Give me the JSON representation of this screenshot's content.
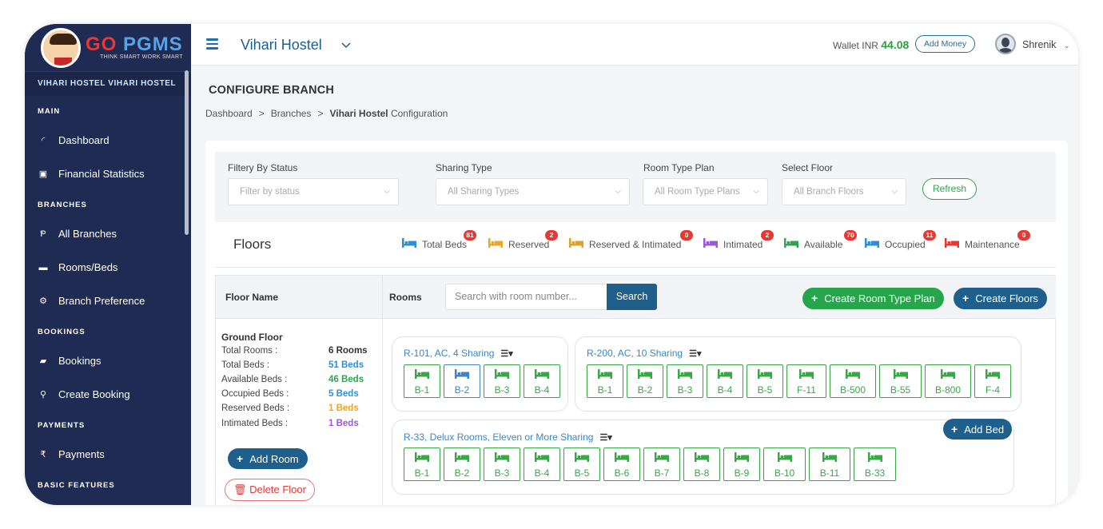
{
  "brand": {
    "logo_text_left": "GO",
    "logo_text_right": "PGMS",
    "tagline": "THINK SMART WORK SMART"
  },
  "sidebar": {
    "branch_name": "VIHARI HOSTEL VIHARI HOSTEL",
    "sections": {
      "main": "MAIN",
      "branches": "BRANCHES",
      "bookings": "BOOKINGS",
      "payments": "PAYMENTS",
      "basic": "BASIC FEATURES"
    },
    "items": {
      "dashboard": "Dashboard",
      "financial": "Financial Statistics",
      "all_branches": "All Branches",
      "rooms_beds": "Rooms/Beds",
      "branch_pref": "Branch Preference",
      "bookings": "Bookings",
      "create_booking": "Create Booking",
      "payments": "Payments"
    }
  },
  "topbar": {
    "hostel": "Vihari Hostel",
    "wallet_label": "Wallet INR",
    "wallet_amount": "44.08",
    "add_money": "Add Money",
    "user": "Shrenik"
  },
  "page": {
    "title": "CONFIGURE BRANCH",
    "crumb": {
      "c1": "Dashboard",
      "c2": "Branches",
      "c3_bold": "Vihari Hostel",
      "c3_rest": "Configuration",
      "sep": ">"
    }
  },
  "filters": {
    "status_label": "Filtery By Status",
    "status_ph": "Filter by status",
    "sharing_label": "Sharing Type",
    "sharing_ph": "All Sharing Types",
    "plan_label": "Room Type Plan",
    "plan_ph": "All Room Type Plans",
    "floor_label": "Select Floor",
    "floor_ph": "All Branch Floors",
    "refresh": "Refresh"
  },
  "legend": {
    "floors": "Floors",
    "total": {
      "label": "Total Beds",
      "count": "81",
      "color": "#2f8fd6"
    },
    "reserved": {
      "label": "Reserved",
      "count": "2",
      "color": "#f0a422"
    },
    "res_int": {
      "label": "Reserved & Intimated",
      "count": "0",
      "color": "#e0a030"
    },
    "intimated": {
      "label": "Intimated",
      "count": "2",
      "color": "#9b59d6"
    },
    "available": {
      "label": "Available",
      "count": "70",
      "color": "#2ea44f"
    },
    "occupied": {
      "label": "Occupied",
      "count": "11",
      "color": "#2f8fd6"
    },
    "maintenance": {
      "label": "Maintenance",
      "count": "0",
      "color": "#e53935"
    }
  },
  "floor_panel": {
    "header": "Floor Name",
    "name": "Ground Floor",
    "stats": {
      "total_rooms_l": "Total Rooms :",
      "total_rooms_v": "6 Rooms",
      "total_beds_l": "Total Beds :",
      "total_beds_v": "51 Beds",
      "avail_l": "Available Beds :",
      "avail_v": "46 Beds",
      "occ_l": "Occupied Beds :",
      "occ_v": "5 Beds",
      "res_l": "Reserved Beds :",
      "res_v": "1 Beds",
      "int_l": "Intimated Beds :",
      "int_v": "1 Beds"
    },
    "add_room": "Add Room",
    "delete_floor": "Delete Floor"
  },
  "rooms_panel": {
    "label": "Rooms",
    "search_ph": "Search with room number...",
    "search_btn": "Search",
    "create_plan": "Create Room Type Plan",
    "create_floors": "Create Floors",
    "add_bed": "Add Bed",
    "room1": {
      "title": "R-101, AC, 4 Sharing",
      "beds": [
        "B-1",
        "B-2",
        "B-3",
        "B-4"
      ],
      "occupied_index": 1
    },
    "room2": {
      "title": "R-200, AC, 10 Sharing",
      "beds": [
        "B-1",
        "B-2",
        "B-3",
        "B-4",
        "B-5",
        "F-11",
        "B-500",
        "B-55",
        "B-800",
        "F-4"
      ]
    },
    "room3": {
      "title": "R-33, Delux Rooms, Eleven or More Sharing",
      "beds": [
        "B-1",
        "B-2",
        "B-3",
        "B-4",
        "B-5",
        "B-6",
        "B-7",
        "B-8",
        "B-9",
        "B-10",
        "B-11",
        "B-33"
      ]
    }
  }
}
